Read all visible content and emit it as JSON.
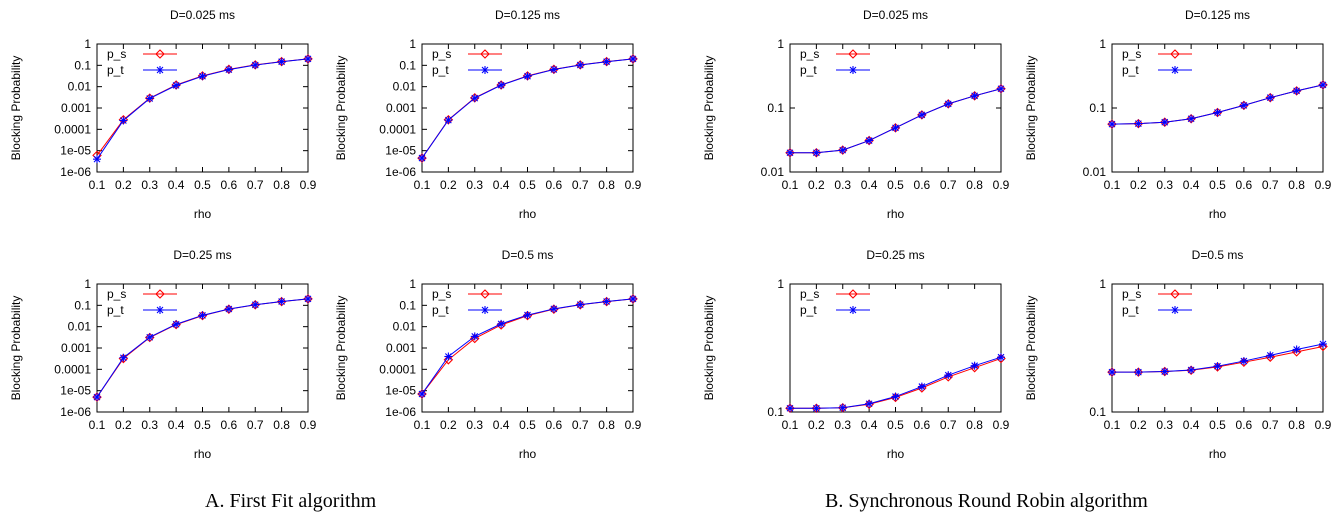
{
  "captions": {
    "left": "A. First Fit algorithm",
    "right": "B. Synchronous Round Robin algorithm"
  },
  "colors": {
    "p_s": "#ff0000",
    "p_t": "#0000ff"
  },
  "chart_data": [
    {
      "id": "ff-d0025",
      "type": "line",
      "title": "D=0.025 ms",
      "xlabel": "rho",
      "ylabel": "Blocking Probability",
      "yscale": "log",
      "ylim": [
        1e-06,
        1
      ],
      "xlim": [
        0.1,
        0.9
      ],
      "x_ticks": [
        "0.1",
        "0.2",
        "0.3",
        "0.4",
        "0.5",
        "0.6",
        "0.7",
        "0.8",
        "0.9"
      ],
      "y_ticks": [
        {
          "v": 1e-06,
          "label": "1e-06"
        },
        {
          "v": 1e-05,
          "label": "1e-05"
        },
        {
          "v": 0.0001,
          "label": "0.0001"
        },
        {
          "v": 0.001,
          "label": "0.001"
        },
        {
          "v": 0.01,
          "label": "0.01"
        },
        {
          "v": 0.1,
          "label": "0.1"
        },
        {
          "v": 1,
          "label": "1"
        }
      ],
      "legend": "top-left",
      "grid": false,
      "x": [
        0.1,
        0.2,
        0.3,
        0.4,
        0.5,
        0.6,
        0.7,
        0.8,
        0.9
      ],
      "series": [
        {
          "name": "p_s",
          "marker": "diamond",
          "values": [
            6e-06,
            0.00028,
            0.0029,
            0.012,
            0.032,
            0.065,
            0.105,
            0.15,
            0.2
          ]
        },
        {
          "name": "p_t",
          "marker": "star",
          "values": [
            4e-06,
            0.00026,
            0.0028,
            0.0115,
            0.031,
            0.063,
            0.103,
            0.148,
            0.2
          ]
        }
      ]
    },
    {
      "id": "ff-d0125",
      "type": "line",
      "title": "D=0.125 ms",
      "xlabel": "rho",
      "ylabel": "Blocking Probability",
      "yscale": "log",
      "ylim": [
        1e-06,
        1
      ],
      "xlim": [
        0.1,
        0.9
      ],
      "x_ticks": [
        "0.1",
        "0.2",
        "0.3",
        "0.4",
        "0.5",
        "0.6",
        "0.7",
        "0.8",
        "0.9"
      ],
      "y_ticks": [
        {
          "v": 1e-06,
          "label": "1e-06"
        },
        {
          "v": 1e-05,
          "label": "1e-05"
        },
        {
          "v": 0.0001,
          "label": "0.0001"
        },
        {
          "v": 0.001,
          "label": "0.001"
        },
        {
          "v": 0.01,
          "label": "0.01"
        },
        {
          "v": 0.1,
          "label": "0.1"
        },
        {
          "v": 1,
          "label": "1"
        }
      ],
      "legend": "top-left",
      "grid": false,
      "x": [
        0.1,
        0.2,
        0.3,
        0.4,
        0.5,
        0.6,
        0.7,
        0.8,
        0.9
      ],
      "series": [
        {
          "name": "p_s",
          "marker": "diamond",
          "values": [
            4.5e-06,
            0.00028,
            0.003,
            0.012,
            0.032,
            0.065,
            0.105,
            0.15,
            0.2
          ]
        },
        {
          "name": "p_t",
          "marker": "star",
          "values": [
            4.5e-06,
            0.00027,
            0.0029,
            0.0118,
            0.031,
            0.064,
            0.104,
            0.148,
            0.2
          ]
        }
      ]
    },
    {
      "id": "ff-d025",
      "type": "line",
      "title": "D=0.25 ms",
      "xlabel": "rho",
      "ylabel": "Blocking Probability",
      "yscale": "log",
      "ylim": [
        1e-06,
        1
      ],
      "xlim": [
        0.1,
        0.9
      ],
      "x_ticks": [
        "0.1",
        "0.2",
        "0.3",
        "0.4",
        "0.5",
        "0.6",
        "0.7",
        "0.8",
        "0.9"
      ],
      "y_ticks": [
        {
          "v": 1e-06,
          "label": "1e-06"
        },
        {
          "v": 1e-05,
          "label": "1e-05"
        },
        {
          "v": 0.0001,
          "label": "0.0001"
        },
        {
          "v": 0.001,
          "label": "0.001"
        },
        {
          "v": 0.01,
          "label": "0.01"
        },
        {
          "v": 0.1,
          "label": "0.1"
        },
        {
          "v": 1,
          "label": "1"
        }
      ],
      "legend": "top-left",
      "grid": false,
      "x": [
        0.1,
        0.2,
        0.3,
        0.4,
        0.5,
        0.6,
        0.7,
        0.8,
        0.9
      ],
      "series": [
        {
          "name": "p_s",
          "marker": "diamond",
          "values": [
            5e-06,
            0.00032,
            0.0031,
            0.0125,
            0.033,
            0.066,
            0.106,
            0.15,
            0.2
          ]
        },
        {
          "name": "p_t",
          "marker": "star",
          "values": [
            5e-06,
            0.00035,
            0.0032,
            0.013,
            0.034,
            0.067,
            0.107,
            0.152,
            0.2
          ]
        }
      ]
    },
    {
      "id": "ff-d05",
      "type": "line",
      "title": "D=0.5 ms",
      "xlabel": "rho",
      "ylabel": "Blocking Probability",
      "yscale": "log",
      "ylim": [
        1e-06,
        1
      ],
      "xlim": [
        0.1,
        0.9
      ],
      "x_ticks": [
        "0.1",
        "0.2",
        "0.3",
        "0.4",
        "0.5",
        "0.6",
        "0.7",
        "0.8",
        "0.9"
      ],
      "y_ticks": [
        {
          "v": 1e-06,
          "label": "1e-06"
        },
        {
          "v": 1e-05,
          "label": "1e-05"
        },
        {
          "v": 0.0001,
          "label": "0.0001"
        },
        {
          "v": 0.001,
          "label": "0.001"
        },
        {
          "v": 0.01,
          "label": "0.01"
        },
        {
          "v": 0.1,
          "label": "0.1"
        },
        {
          "v": 1,
          "label": "1"
        }
      ],
      "legend": "top-left",
      "grid": false,
      "x": [
        0.1,
        0.2,
        0.3,
        0.4,
        0.5,
        0.6,
        0.7,
        0.8,
        0.9
      ],
      "series": [
        {
          "name": "p_s",
          "marker": "diamond",
          "values": [
            7e-06,
            0.00028,
            0.0028,
            0.012,
            0.033,
            0.066,
            0.106,
            0.15,
            0.2
          ]
        },
        {
          "name": "p_t",
          "marker": "star",
          "values": [
            7e-06,
            0.0004,
            0.0035,
            0.0135,
            0.035,
            0.068,
            0.108,
            0.152,
            0.2
          ]
        }
      ]
    },
    {
      "id": "rr-d0025",
      "type": "line",
      "title": "D=0.025 ms",
      "xlabel": "rho",
      "ylabel": "Blocking Probability",
      "yscale": "log",
      "ylim": [
        0.01,
        1
      ],
      "xlim": [
        0.1,
        0.9
      ],
      "x_ticks": [
        "0.1",
        "0.2",
        "0.3",
        "0.4",
        "0.5",
        "0.6",
        "0.7",
        "0.8",
        "0.9"
      ],
      "y_ticks": [
        {
          "v": 0.01,
          "label": "0.01"
        },
        {
          "v": 0.1,
          "label": "0.1"
        },
        {
          "v": 1,
          "label": "1"
        }
      ],
      "legend": "top-left",
      "grid": false,
      "x": [
        0.1,
        0.2,
        0.3,
        0.4,
        0.5,
        0.6,
        0.7,
        0.8,
        0.9
      ],
      "series": [
        {
          "name": "p_s",
          "marker": "diamond",
          "values": [
            0.02,
            0.02,
            0.022,
            0.031,
            0.049,
            0.078,
            0.116,
            0.155,
            0.2
          ]
        },
        {
          "name": "p_t",
          "marker": "star",
          "values": [
            0.02,
            0.02,
            0.022,
            0.031,
            0.049,
            0.078,
            0.116,
            0.155,
            0.2
          ]
        }
      ]
    },
    {
      "id": "rr-d0125",
      "type": "line",
      "title": "D=0.125 ms",
      "xlabel": "rho",
      "ylabel": "Blocking Probability",
      "yscale": "log",
      "ylim": [
        0.01,
        1
      ],
      "xlim": [
        0.1,
        0.9
      ],
      "x_ticks": [
        "0.1",
        "0.2",
        "0.3",
        "0.4",
        "0.5",
        "0.6",
        "0.7",
        "0.8",
        "0.9"
      ],
      "y_ticks": [
        {
          "v": 0.01,
          "label": "0.01"
        },
        {
          "v": 0.1,
          "label": "0.1"
        },
        {
          "v": 1,
          "label": "1"
        }
      ],
      "legend": "top-left",
      "grid": false,
      "x": [
        0.1,
        0.2,
        0.3,
        0.4,
        0.5,
        0.6,
        0.7,
        0.8,
        0.9
      ],
      "series": [
        {
          "name": "p_s",
          "marker": "diamond",
          "values": [
            0.056,
            0.057,
            0.06,
            0.068,
            0.085,
            0.11,
            0.145,
            0.185,
            0.23
          ]
        },
        {
          "name": "p_t",
          "marker": "star",
          "values": [
            0.056,
            0.057,
            0.06,
            0.068,
            0.085,
            0.11,
            0.145,
            0.185,
            0.23
          ]
        }
      ]
    },
    {
      "id": "rr-d025",
      "type": "line",
      "title": "D=0.25 ms",
      "xlabel": "rho",
      "ylabel": "Blocking Probability",
      "yscale": "log",
      "ylim": [
        0.1,
        1
      ],
      "xlim": [
        0.1,
        0.9
      ],
      "x_ticks": [
        "0.1",
        "0.2",
        "0.3",
        "0.4",
        "0.5",
        "0.6",
        "0.7",
        "0.8",
        "0.9"
      ],
      "y_ticks": [
        {
          "v": 0.1,
          "label": "0.1"
        },
        {
          "v": 1,
          "label": "1"
        }
      ],
      "legend": "top-left",
      "grid": false,
      "x": [
        0.1,
        0.2,
        0.3,
        0.4,
        0.5,
        0.6,
        0.7,
        0.8,
        0.9
      ],
      "series": [
        {
          "name": "p_s",
          "marker": "diamond",
          "values": [
            0.107,
            0.107,
            0.108,
            0.115,
            0.13,
            0.154,
            0.188,
            0.222,
            0.262
          ]
        },
        {
          "name": "p_t",
          "marker": "star",
          "values": [
            0.107,
            0.107,
            0.108,
            0.116,
            0.132,
            0.158,
            0.194,
            0.23,
            0.268
          ]
        }
      ]
    },
    {
      "id": "rr-d05",
      "type": "line",
      "title": "D=0.5 ms",
      "xlabel": "rho",
      "ylabel": "Blocking Probability",
      "yscale": "log",
      "ylim": [
        0.1,
        1
      ],
      "xlim": [
        0.1,
        0.9
      ],
      "x_ticks": [
        "0.1",
        "0.2",
        "0.3",
        "0.4",
        "0.5",
        "0.6",
        "0.7",
        "0.8",
        "0.9"
      ],
      "y_ticks": [
        {
          "v": 0.1,
          "label": "0.1"
        },
        {
          "v": 1,
          "label": "1"
        }
      ],
      "legend": "top-left",
      "grid": false,
      "x": [
        0.1,
        0.2,
        0.3,
        0.4,
        0.5,
        0.6,
        0.7,
        0.8,
        0.9
      ],
      "series": [
        {
          "name": "p_s",
          "marker": "diamond",
          "values": [
            0.205,
            0.205,
            0.207,
            0.212,
            0.225,
            0.245,
            0.268,
            0.295,
            0.325
          ]
        },
        {
          "name": "p_t",
          "marker": "star",
          "values": [
            0.205,
            0.205,
            0.207,
            0.213,
            0.228,
            0.25,
            0.277,
            0.308,
            0.34
          ]
        }
      ]
    }
  ]
}
